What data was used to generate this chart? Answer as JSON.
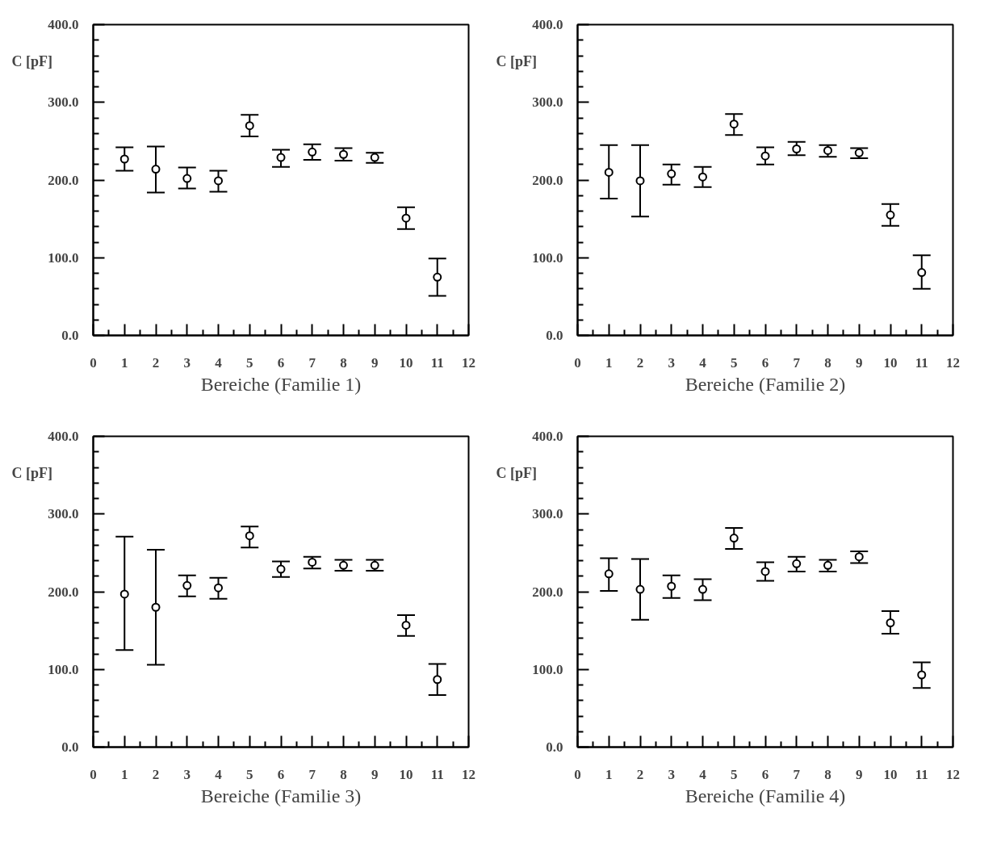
{
  "chart_data": [
    {
      "type": "scatter",
      "xlabel": "Bereiche (Familie 1)",
      "ylabel": "C [pF]",
      "marker": "circle",
      "grid": false,
      "xlim": [
        0,
        12
      ],
      "xticks": [
        0,
        1,
        2,
        3,
        4,
        5,
        6,
        7,
        8,
        9,
        10,
        11,
        12
      ],
      "ylim": [
        0,
        400
      ],
      "yticks": [
        {
          "value": 0,
          "label": "0.0"
        },
        {
          "value": 100,
          "label": "100.0"
        },
        {
          "value": 200,
          "label": "200.0"
        },
        {
          "value": 300,
          "label": "300.0"
        },
        {
          "value": 400,
          "label": "400.0"
        }
      ],
      "x": [
        1,
        2,
        3,
        4,
        5,
        6,
        7,
        8,
        9,
        10,
        11
      ],
      "series": [
        {
          "color": "#000000",
          "values": [
            227,
            214,
            202,
            199,
            270,
            229,
            236,
            233,
            229,
            151,
            75
          ],
          "errors": [
            [
              212,
              242
            ],
            [
              184,
              243
            ],
            [
              189,
              216
            ],
            [
              185,
              212
            ],
            [
              256,
              284
            ],
            [
              217,
              239
            ],
            [
              226,
              246
            ],
            [
              225,
              241
            ],
            [
              222,
              235
            ],
            [
              137,
              165
            ],
            [
              51,
              99
            ]
          ]
        }
      ]
    },
    {
      "type": "scatter",
      "xlabel": "Bereiche (Familie 2)",
      "ylabel": "C [pF]",
      "marker": "circle",
      "grid": false,
      "xlim": [
        0,
        12
      ],
      "xticks": [
        0,
        1,
        2,
        3,
        4,
        5,
        6,
        7,
        8,
        9,
        10,
        11,
        12
      ],
      "ylim": [
        0,
        400
      ],
      "yticks": [
        {
          "value": 0,
          "label": "0.0"
        },
        {
          "value": 100,
          "label": "100.0"
        },
        {
          "value": 200,
          "label": "200.0"
        },
        {
          "value": 300,
          "label": "300.0"
        },
        {
          "value": 400,
          "label": "400.0"
        }
      ],
      "x": [
        1,
        2,
        3,
        4,
        5,
        6,
        7,
        8,
        9,
        10,
        11
      ],
      "series": [
        {
          "color": "#000000",
          "values": [
            210,
            199,
            208,
            204,
            272,
            231,
            240,
            238,
            235,
            155,
            81
          ],
          "errors": [
            [
              176,
              245
            ],
            [
              153,
              245
            ],
            [
              194,
              220
            ],
            [
              191,
              217
            ],
            [
              258,
              285
            ],
            [
              220,
              242
            ],
            [
              232,
              249
            ],
            [
              230,
              245
            ],
            [
              228,
              241
            ],
            [
              141,
              169
            ],
            [
              60,
              103
            ]
          ]
        }
      ]
    },
    {
      "type": "scatter",
      "xlabel": "Bereiche (Familie 3)",
      "ylabel": "C [pF]",
      "marker": "circle",
      "grid": false,
      "xlim": [
        0,
        12
      ],
      "xticks": [
        0,
        1,
        2,
        3,
        4,
        5,
        6,
        7,
        8,
        9,
        10,
        11,
        12
      ],
      "ylim": [
        0,
        400
      ],
      "yticks": [
        {
          "value": 0,
          "label": "0.0"
        },
        {
          "value": 100,
          "label": "100.0"
        },
        {
          "value": 200,
          "label": "200.0"
        },
        {
          "value": 300,
          "label": "300.0"
        },
        {
          "value": 400,
          "label": "400.0"
        }
      ],
      "x": [
        1,
        2,
        3,
        4,
        5,
        6,
        7,
        8,
        9,
        10,
        11
      ],
      "series": [
        {
          "color": "#000000",
          "values": [
            197,
            180,
            208,
            205,
            272,
            229,
            238,
            234,
            234,
            157,
            87
          ],
          "errors": [
            [
              125,
              271
            ],
            [
              106,
              254
            ],
            [
              194,
              221
            ],
            [
              191,
              218
            ],
            [
              257,
              284
            ],
            [
              219,
              239
            ],
            [
              230,
              245
            ],
            [
              227,
              241
            ],
            [
              227,
              241
            ],
            [
              143,
              170
            ],
            [
              67,
              107
            ]
          ]
        }
      ]
    },
    {
      "type": "scatter",
      "xlabel": "Bereiche (Familie 4)",
      "ylabel": "C [pF]",
      "marker": "circle",
      "grid": false,
      "xlim": [
        0,
        12
      ],
      "xticks": [
        0,
        1,
        2,
        3,
        4,
        5,
        6,
        7,
        8,
        9,
        10,
        11,
        12
      ],
      "ylim": [
        0,
        400
      ],
      "yticks": [
        {
          "value": 0,
          "label": "0.0"
        },
        {
          "value": 100,
          "label": "100.0"
        },
        {
          "value": 200,
          "label": "200.0"
        },
        {
          "value": 300,
          "label": "300.0"
        },
        {
          "value": 400,
          "label": "400.0"
        }
      ],
      "x": [
        1,
        2,
        3,
        4,
        5,
        6,
        7,
        8,
        9,
        10,
        11
      ],
      "series": [
        {
          "color": "#000000",
          "values": [
            223,
            203,
            207,
            203,
            269,
            226,
            236,
            234,
            245,
            160,
            93
          ],
          "errors": [
            [
              201,
              243
            ],
            [
              164,
              242
            ],
            [
              192,
              221
            ],
            [
              189,
              216
            ],
            [
              255,
              282
            ],
            [
              214,
              238
            ],
            [
              226,
              245
            ],
            [
              226,
              241
            ],
            [
              237,
              252
            ],
            [
              146,
              175
            ],
            [
              76,
              109
            ]
          ]
        }
      ]
    }
  ]
}
